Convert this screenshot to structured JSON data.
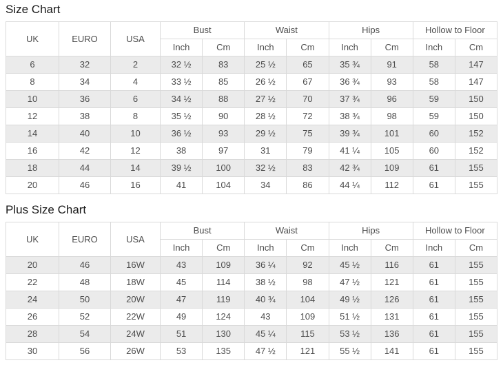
{
  "colors": {
    "row_alt_background": "#ebebeb",
    "row_background": "#ffffff",
    "border": "#d9d9d9",
    "text": "#4d4d4d",
    "title": "#1a1a1a"
  },
  "tables": [
    {
      "title": "Size Chart",
      "size_columns": [
        "UK",
        "EURO",
        "USA"
      ],
      "measure_groups": [
        {
          "label": "Bust",
          "units": [
            "Inch",
            "Cm"
          ]
        },
        {
          "label": "Waist",
          "units": [
            "Inch",
            "Cm"
          ]
        },
        {
          "label": "Hips",
          "units": [
            "Inch",
            "Cm"
          ]
        },
        {
          "label": "Hollow to Floor",
          "units": [
            "Inch",
            "Cm"
          ]
        }
      ],
      "rows": [
        [
          "6",
          "32",
          "2",
          "32 ½",
          "83",
          "25 ½",
          "65",
          "35 ¾",
          "91",
          "58",
          "147"
        ],
        [
          "8",
          "34",
          "4",
          "33 ½",
          "85",
          "26 ½",
          "67",
          "36 ¾",
          "93",
          "58",
          "147"
        ],
        [
          "10",
          "36",
          "6",
          "34 ½",
          "88",
          "27 ½",
          "70",
          "37 ¾",
          "96",
          "59",
          "150"
        ],
        [
          "12",
          "38",
          "8",
          "35 ½",
          "90",
          "28 ½",
          "72",
          "38 ¾",
          "98",
          "59",
          "150"
        ],
        [
          "14",
          "40",
          "10",
          "36 ½",
          "93",
          "29 ½",
          "75",
          "39 ¾",
          "101",
          "60",
          "152"
        ],
        [
          "16",
          "42",
          "12",
          "38",
          "97",
          "31",
          "79",
          "41 ¼",
          "105",
          "60",
          "152"
        ],
        [
          "18",
          "44",
          "14",
          "39 ½",
          "100",
          "32 ½",
          "83",
          "42 ¾",
          "109",
          "61",
          "155"
        ],
        [
          "20",
          "46",
          "16",
          "41",
          "104",
          "34",
          "86",
          "44 ¼",
          "112",
          "61",
          "155"
        ]
      ]
    },
    {
      "title": "Plus Size Chart",
      "size_columns": [
        "UK",
        "EURO",
        "USA"
      ],
      "measure_groups": [
        {
          "label": "Bust",
          "units": [
            "Inch",
            "Cm"
          ]
        },
        {
          "label": "Waist",
          "units": [
            "Inch",
            "Cm"
          ]
        },
        {
          "label": "Hips",
          "units": [
            "Inch",
            "Cm"
          ]
        },
        {
          "label": "Hollow to Floor",
          "units": [
            "Inch",
            "Cm"
          ]
        }
      ],
      "rows": [
        [
          "20",
          "46",
          "16W",
          "43",
          "109",
          "36 ¼",
          "92",
          "45 ½",
          "116",
          "61",
          "155"
        ],
        [
          "22",
          "48",
          "18W",
          "45",
          "114",
          "38 ½",
          "98",
          "47 ½",
          "121",
          "61",
          "155"
        ],
        [
          "24",
          "50",
          "20W",
          "47",
          "119",
          "40 ¾",
          "104",
          "49 ½",
          "126",
          "61",
          "155"
        ],
        [
          "26",
          "52",
          "22W",
          "49",
          "124",
          "43",
          "109",
          "51 ½",
          "131",
          "61",
          "155"
        ],
        [
          "28",
          "54",
          "24W",
          "51",
          "130",
          "45 ¼",
          "115",
          "53 ½",
          "136",
          "61",
          "155"
        ],
        [
          "30",
          "56",
          "26W",
          "53",
          "135",
          "47 ½",
          "121",
          "55 ½",
          "141",
          "61",
          "155"
        ]
      ]
    }
  ]
}
